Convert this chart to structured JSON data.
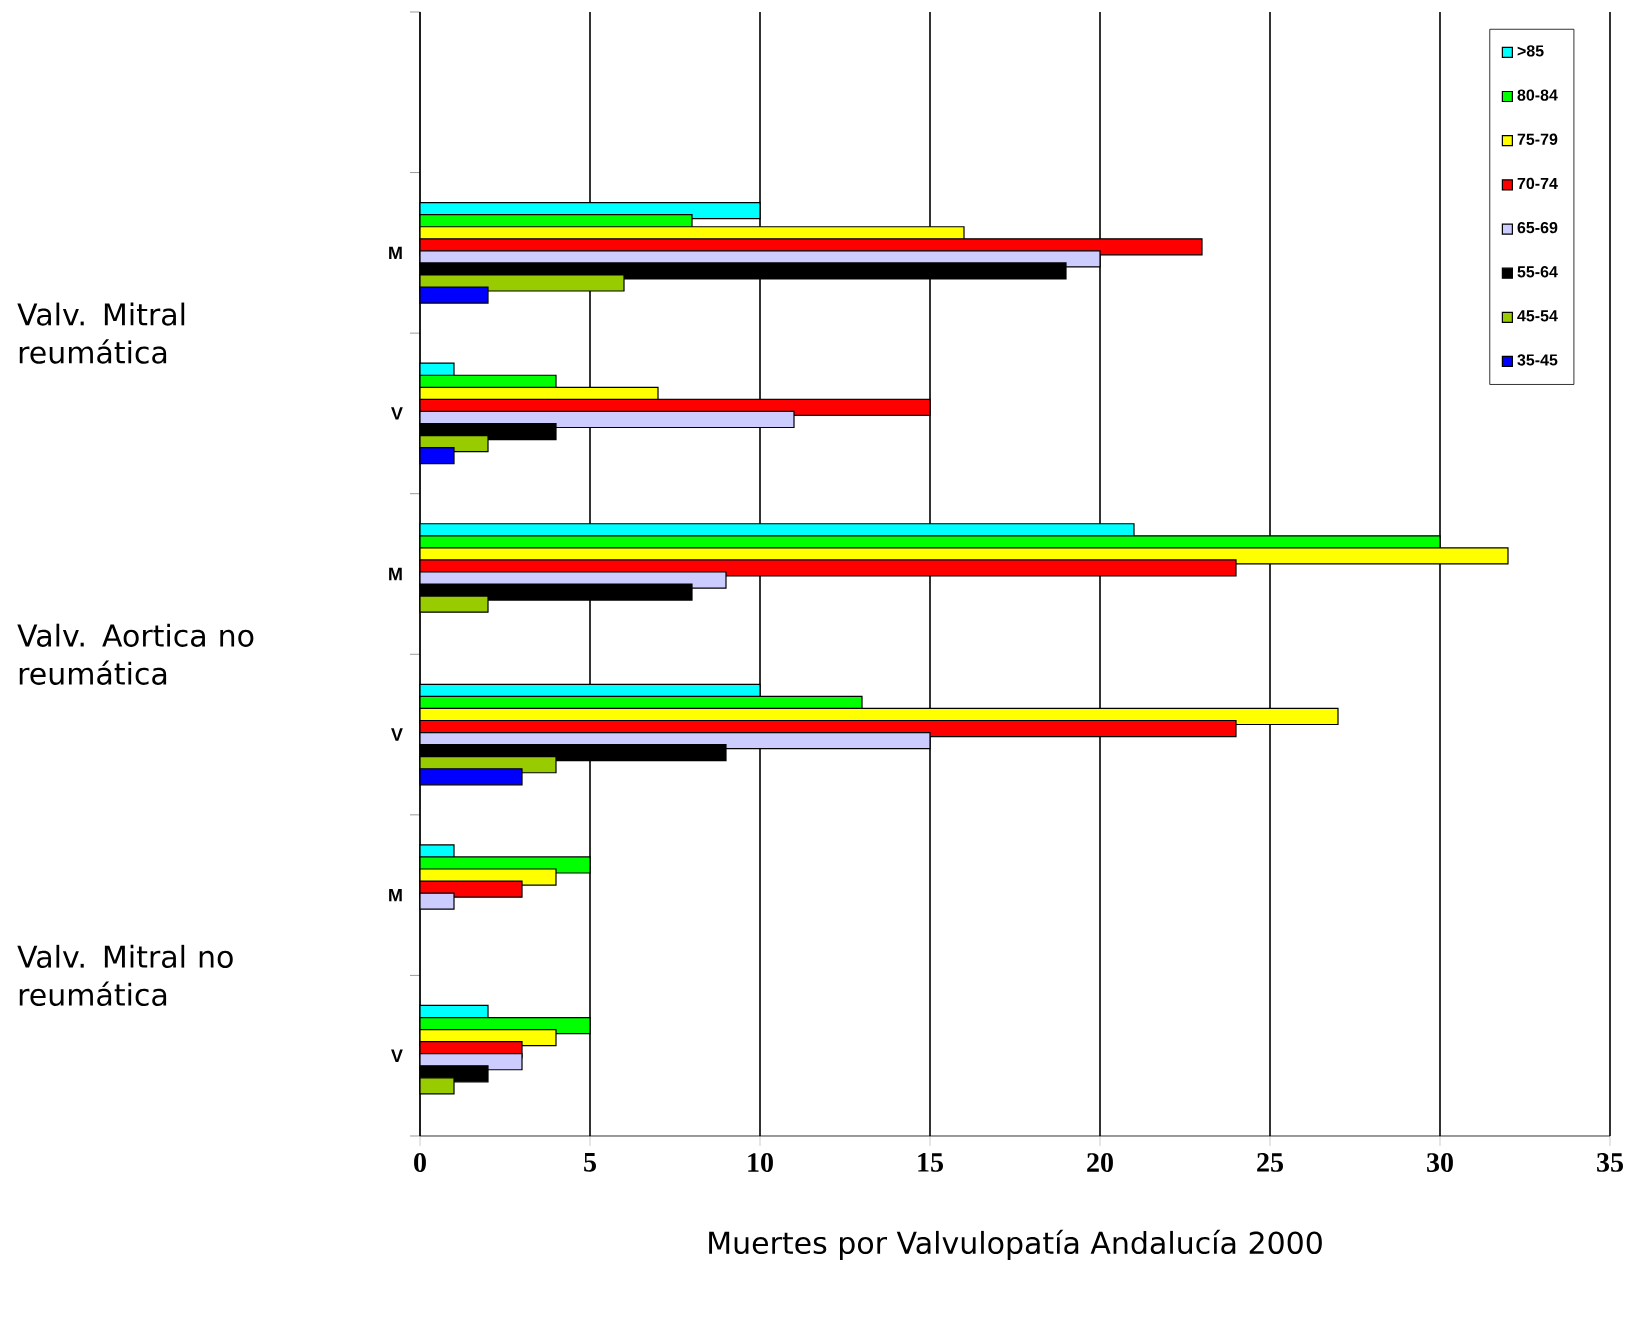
{
  "chart_data": {
    "type": "bar",
    "orientation": "horizontal",
    "xlabel": "Muertes por Valvulopatía Andalucía 2000",
    "categories": [
      null,
      "M",
      "V",
      "M",
      "V",
      "M",
      "V"
    ],
    "series": [
      {
        "name": ">85",
        "color": "#00ffff",
        "values": [
          null,
          10,
          1,
          21,
          10,
          1,
          2
        ]
      },
      {
        "name": "80-84",
        "color": "#00ff00",
        "values": [
          null,
          8,
          4,
          30,
          13,
          5,
          5
        ]
      },
      {
        "name": "75-79",
        "color": "#ffff00",
        "values": [
          null,
          16,
          7,
          32,
          27,
          4,
          4
        ]
      },
      {
        "name": "70-74",
        "color": "#ff0000",
        "values": [
          null,
          23,
          15,
          24,
          24,
          3,
          3
        ]
      },
      {
        "name": "65-69",
        "color": "#ccccff",
        "values": [
          null,
          20,
          11,
          9,
          15,
          1,
          3
        ]
      },
      {
        "name": "55-64",
        "color": "#000000",
        "values": [
          null,
          19,
          4,
          8,
          9,
          null,
          2
        ]
      },
      {
        "name": "45-54",
        "color": "#99cc00",
        "values": [
          null,
          6,
          2,
          2,
          4,
          null,
          1
        ]
      },
      {
        "name": "35-45",
        "color": "#0000ff",
        "values": [
          null,
          2,
          1,
          null,
          3,
          null,
          null
        ]
      }
    ],
    "xlim": [
      0,
      35
    ],
    "xticks": [
      0,
      5,
      10,
      15,
      20,
      25,
      30,
      35
    ],
    "grid": "x",
    "legend": "top right",
    "annotations": [
      "Valv. Mitral reumática",
      "Valv. Aortica no reumática",
      "Valv. Mitral no reumática"
    ]
  }
}
